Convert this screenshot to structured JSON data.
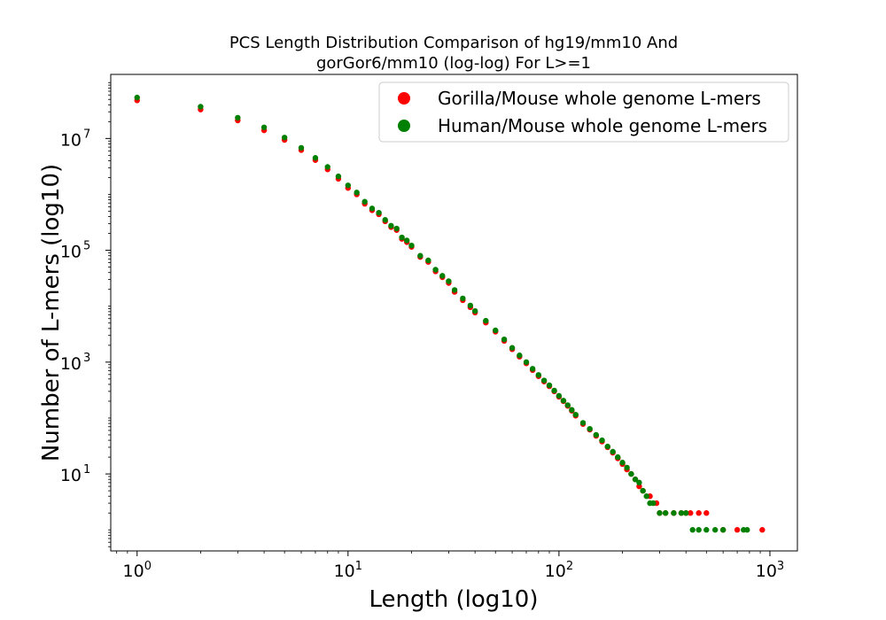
{
  "chart_data": {
    "type": "scatter",
    "title_lines": [
      "PCS Length Distribution Comparison of hg19/mm10 And",
      "gorGor6/mm10 (log-log) For L>=1"
    ],
    "xlabel": "Length (log10)",
    "ylabel": "Number of L-mers (log10)",
    "xscale": "log",
    "yscale": "log",
    "xlim": [
      0.75,
      1350
    ],
    "ylim": [
      0.42,
      140000000
    ],
    "x_ticks": [
      {
        "base": "10",
        "exp": "0",
        "value": 1
      },
      {
        "base": "10",
        "exp": "1",
        "value": 10
      },
      {
        "base": "10",
        "exp": "2",
        "value": 100
      },
      {
        "base": "10",
        "exp": "3",
        "value": 1000
      }
    ],
    "y_ticks": [
      {
        "base": "10",
        "exp": "1",
        "value": 10
      },
      {
        "base": "10",
        "exp": "3",
        "value": 1000
      },
      {
        "base": "10",
        "exp": "5",
        "value": 100000
      },
      {
        "base": "10",
        "exp": "7",
        "value": 10000000
      }
    ],
    "legend_position": "top-right",
    "series": [
      {
        "name": "Gorilla/Mouse whole genome L-mers",
        "color": "#ff0000",
        "points": [
          [
            1,
            48000000
          ],
          [
            2,
            33000000
          ],
          [
            3,
            21000000
          ],
          [
            4,
            14000000
          ],
          [
            5,
            9400000
          ],
          [
            6,
            6200000
          ],
          [
            7,
            4100000
          ],
          [
            8,
            2800000
          ],
          [
            9,
            1900000
          ],
          [
            10,
            1300000
          ],
          [
            11,
            1000000
          ],
          [
            12,
            680000
          ],
          [
            13,
            520000
          ],
          [
            14,
            440000
          ],
          [
            15,
            330000
          ],
          [
            16,
            260000
          ],
          [
            17,
            230000
          ],
          [
            18,
            160000
          ],
          [
            19,
            140000
          ],
          [
            20,
            115000
          ],
          [
            22,
            76000
          ],
          [
            24,
            62000
          ],
          [
            26,
            42000
          ],
          [
            28,
            33000
          ],
          [
            30,
            26000
          ],
          [
            32,
            18000
          ],
          [
            35,
            12800
          ],
          [
            38,
            9600
          ],
          [
            40,
            7700
          ],
          [
            45,
            5100
          ],
          [
            50,
            3500
          ],
          [
            55,
            2400
          ],
          [
            60,
            1700
          ],
          [
            65,
            1250
          ],
          [
            70,
            950
          ],
          [
            75,
            720
          ],
          [
            80,
            560
          ],
          [
            85,
            450
          ],
          [
            90,
            370
          ],
          [
            95,
            300
          ],
          [
            100,
            240
          ],
          [
            105,
            200
          ],
          [
            110,
            165
          ],
          [
            115,
            135
          ],
          [
            120,
            110
          ],
          [
            130,
            78
          ],
          [
            140,
            62
          ],
          [
            150,
            48
          ],
          [
            160,
            38
          ],
          [
            170,
            30
          ],
          [
            180,
            24
          ],
          [
            190,
            19
          ],
          [
            200,
            15
          ],
          [
            210,
            12
          ],
          [
            220,
            10
          ],
          [
            230,
            8
          ],
          [
            240,
            6
          ],
          [
            250,
            5
          ],
          [
            270,
            4
          ],
          [
            290,
            3
          ],
          [
            300,
            2
          ],
          [
            320,
            2
          ],
          [
            350,
            2
          ],
          [
            380,
            2
          ],
          [
            400,
            2
          ],
          [
            420,
            2
          ],
          [
            460,
            2
          ],
          [
            500,
            2
          ],
          [
            600,
            1
          ],
          [
            700,
            1
          ],
          [
            920,
            1
          ]
        ]
      },
      {
        "name": "Human/Mouse whole genome L-mers",
        "color": "#008000",
        "points": [
          [
            1,
            54000000
          ],
          [
            2,
            37000000
          ],
          [
            3,
            23500000
          ],
          [
            4,
            15800000
          ],
          [
            5,
            10400000
          ],
          [
            6,
            6800000
          ],
          [
            7,
            4500000
          ],
          [
            8,
            3100000
          ],
          [
            9,
            2100000
          ],
          [
            10,
            1450000
          ],
          [
            11,
            1080000
          ],
          [
            12,
            740000
          ],
          [
            13,
            560000
          ],
          [
            14,
            470000
          ],
          [
            15,
            350000
          ],
          [
            16,
            275000
          ],
          [
            17,
            245000
          ],
          [
            18,
            170000
          ],
          [
            19,
            150000
          ],
          [
            20,
            122000
          ],
          [
            22,
            80000
          ],
          [
            24,
            66000
          ],
          [
            26,
            45000
          ],
          [
            28,
            35000
          ],
          [
            30,
            28000
          ],
          [
            32,
            19500
          ],
          [
            35,
            13800
          ],
          [
            38,
            10300
          ],
          [
            40,
            8200
          ],
          [
            45,
            5500
          ],
          [
            50,
            3700
          ],
          [
            55,
            2550
          ],
          [
            60,
            1800
          ],
          [
            65,
            1320
          ],
          [
            70,
            1000
          ],
          [
            75,
            760
          ],
          [
            80,
            590
          ],
          [
            85,
            470
          ],
          [
            90,
            385
          ],
          [
            95,
            310
          ],
          [
            100,
            250
          ],
          [
            105,
            205
          ],
          [
            110,
            170
          ],
          [
            115,
            140
          ],
          [
            120,
            115
          ],
          [
            130,
            82
          ],
          [
            140,
            64
          ],
          [
            150,
            50
          ],
          [
            160,
            40
          ],
          [
            170,
            31
          ],
          [
            180,
            25
          ],
          [
            190,
            20
          ],
          [
            200,
            16
          ],
          [
            210,
            13
          ],
          [
            220,
            10
          ],
          [
            230,
            8
          ],
          [
            240,
            7
          ],
          [
            250,
            5
          ],
          [
            260,
            4
          ],
          [
            270,
            3
          ],
          [
            280,
            3
          ],
          [
            300,
            2
          ],
          [
            320,
            2
          ],
          [
            350,
            2
          ],
          [
            380,
            2
          ],
          [
            400,
            2
          ],
          [
            430,
            1
          ],
          [
            460,
            1
          ],
          [
            500,
            1
          ],
          [
            550,
            1
          ],
          [
            600,
            1
          ],
          [
            750,
            1
          ],
          [
            780,
            1
          ]
        ]
      }
    ]
  }
}
